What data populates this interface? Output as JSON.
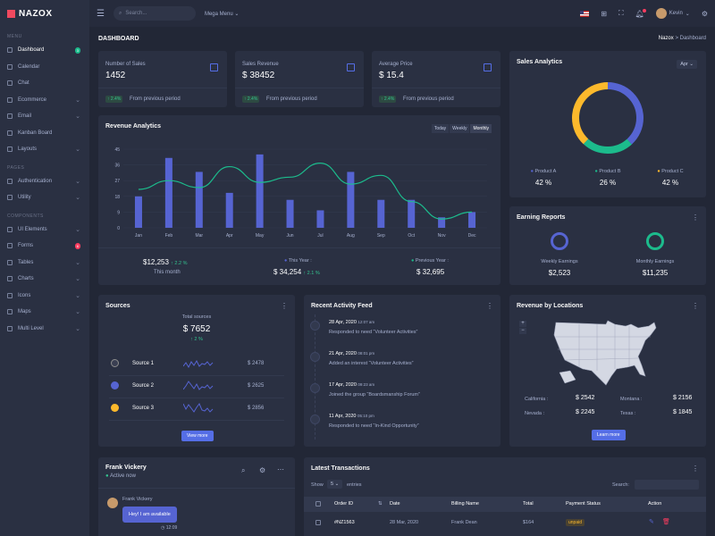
{
  "brand": {
    "name": "NAZOX"
  },
  "topbar": {
    "search_placeholder": "Search...",
    "mega_menu": "Mega Menu",
    "user_name": "Kevin"
  },
  "sidebar": {
    "sections": [
      "MENU",
      "PAGES",
      "COMPONENTS"
    ],
    "menu": [
      {
        "label": "Dashboard",
        "badge": "3"
      },
      {
        "label": "Calendar"
      },
      {
        "label": "Chat"
      },
      {
        "label": "Ecommerce"
      },
      {
        "label": "Email"
      },
      {
        "label": "Kanban Board"
      },
      {
        "label": "Layouts"
      }
    ],
    "pages": [
      {
        "label": "Authentication"
      },
      {
        "label": "Utility"
      }
    ],
    "components": [
      {
        "label": "UI Elements"
      },
      {
        "label": "Forms",
        "badge": "6"
      },
      {
        "label": "Tables"
      },
      {
        "label": "Charts"
      },
      {
        "label": "Icons"
      },
      {
        "label": "Maps"
      },
      {
        "label": "Multi Level"
      }
    ]
  },
  "page": {
    "title": "DASHBOARD",
    "crumb1": "Nazox",
    "crumb_sep": ">",
    "crumb2": "Dashboard"
  },
  "stats": [
    {
      "label": "Number of Sales",
      "value": "1452",
      "change": "↑ 2.4%",
      "note": "From previous period"
    },
    {
      "label": "Sales Revenue",
      "value": "$ 38452",
      "change": "↑ 2.4%",
      "note": "From previous period"
    },
    {
      "label": "Average Price",
      "value": "$ 15.4",
      "change": "↑ 2.4%",
      "note": "From previous period"
    }
  ],
  "revenue": {
    "title": "Revenue Analytics",
    "tabs": [
      "Today",
      "Weekly",
      "Monthly"
    ],
    "month_value": "$12,253",
    "month_change": "↑ 2.2 %",
    "month_label": "This month",
    "year_label": "This Year :",
    "year_value": "$ 34,254",
    "year_change": "↑ 2.1 %",
    "prev_label": "Previous Year :",
    "prev_value": "$ 32,695"
  },
  "chart_data": {
    "type": "bar",
    "categories": [
      "Jan",
      "Feb",
      "Mar",
      "Apr",
      "May",
      "Jun",
      "Jul",
      "Aug",
      "Sep",
      "Oct",
      "Nov",
      "Dec"
    ],
    "yticks": [
      "0",
      "9",
      "18",
      "27",
      "36",
      "45"
    ],
    "ylim": [
      0,
      45
    ],
    "series": [
      {
        "type": "bar",
        "values": [
          18,
          40,
          32,
          20,
          42,
          16,
          10,
          32,
          16,
          16,
          6,
          9
        ],
        "color": "#5664d2"
      },
      {
        "type": "line",
        "values": [
          22,
          27,
          23,
          35,
          26,
          29,
          37,
          25,
          30,
          15,
          5,
          9
        ],
        "color": "#1cbb8c"
      }
    ]
  },
  "sales_analytics": {
    "title": "Sales Analytics",
    "month": "Apr",
    "chart_data": {
      "type": "pie",
      "labels": [
        "Product A",
        "Product B",
        "Product C"
      ],
      "values": [
        42,
        26,
        42
      ],
      "colors": [
        "#5664d2",
        "#1cbb8c",
        "#fcb92c"
      ]
    },
    "legend": [
      {
        "label": "Product A",
        "value": "42 %",
        "color": "#5664d2"
      },
      {
        "label": "Product B",
        "value": "26 %",
        "color": "#1cbb8c"
      },
      {
        "label": "Product C",
        "value": "42 %",
        "color": "#fcb92c"
      }
    ]
  },
  "earning": {
    "title": "Earning Reports",
    "weekly_label": "Weekly Earnings",
    "weekly_value": "$2,523",
    "monthly_label": "Monthly Earnings",
    "monthly_value": "$11,235"
  },
  "sources": {
    "title": "Sources",
    "total_label": "Total sources",
    "total_value": "$ 7652",
    "total_change": "↑ 2 %",
    "items": [
      {
        "name": "Source 1",
        "value": "$ 2478"
      },
      {
        "name": "Source 2",
        "value": "$ 2625"
      },
      {
        "name": "Source 3",
        "value": "$ 2856"
      }
    ],
    "button": "View more"
  },
  "activity": {
    "title": "Recent Activity Feed",
    "items": [
      {
        "date": "28 Apr, 2020",
        "time": "12:07 am",
        "text": "Responded to need “Volunteer Activities”"
      },
      {
        "date": "21 Apr, 2020",
        "time": "08:01 pm",
        "text": "Added an interest “Volunteer Activities”"
      },
      {
        "date": "17 Apr, 2020",
        "time": "09:23 am",
        "text": "Joined the group “Boardsmanship Forum”"
      },
      {
        "date": "11 Apr, 2020",
        "time": "05:10 pm",
        "text": "Responded to need “In-Kind Opportunity”"
      }
    ]
  },
  "locations": {
    "title": "Revenue by Locations",
    "rows": [
      {
        "left_label": "California :",
        "left_value": "$ 2542",
        "right_label": "Montana :",
        "right_value": "$ 2156"
      },
      {
        "left_label": "Nevada :",
        "left_value": "$ 2245",
        "right_label": "Texas :",
        "right_value": "$ 1845"
      }
    ],
    "button": "Learn more",
    "zoom_in": "+",
    "zoom_out": "−"
  },
  "chat": {
    "name": "Frank Vickery",
    "status": "Active now",
    "msg_name": "Frank Vickery",
    "message": "Hey! I am available",
    "time": "12:09"
  },
  "transactions": {
    "title": "Latest Transactions",
    "show": "Show",
    "entries_value": "5",
    "entries": "entries",
    "search_label": "Search:",
    "headers": [
      "Order ID",
      "Date",
      "Billing Name",
      "Total",
      "Payment Status",
      "Action"
    ],
    "rows": [
      {
        "id": "#NZ1563",
        "date": "28 Mar, 2020",
        "name": "Frank Dean",
        "total": "$164",
        "status": "unpaid"
      }
    ]
  }
}
